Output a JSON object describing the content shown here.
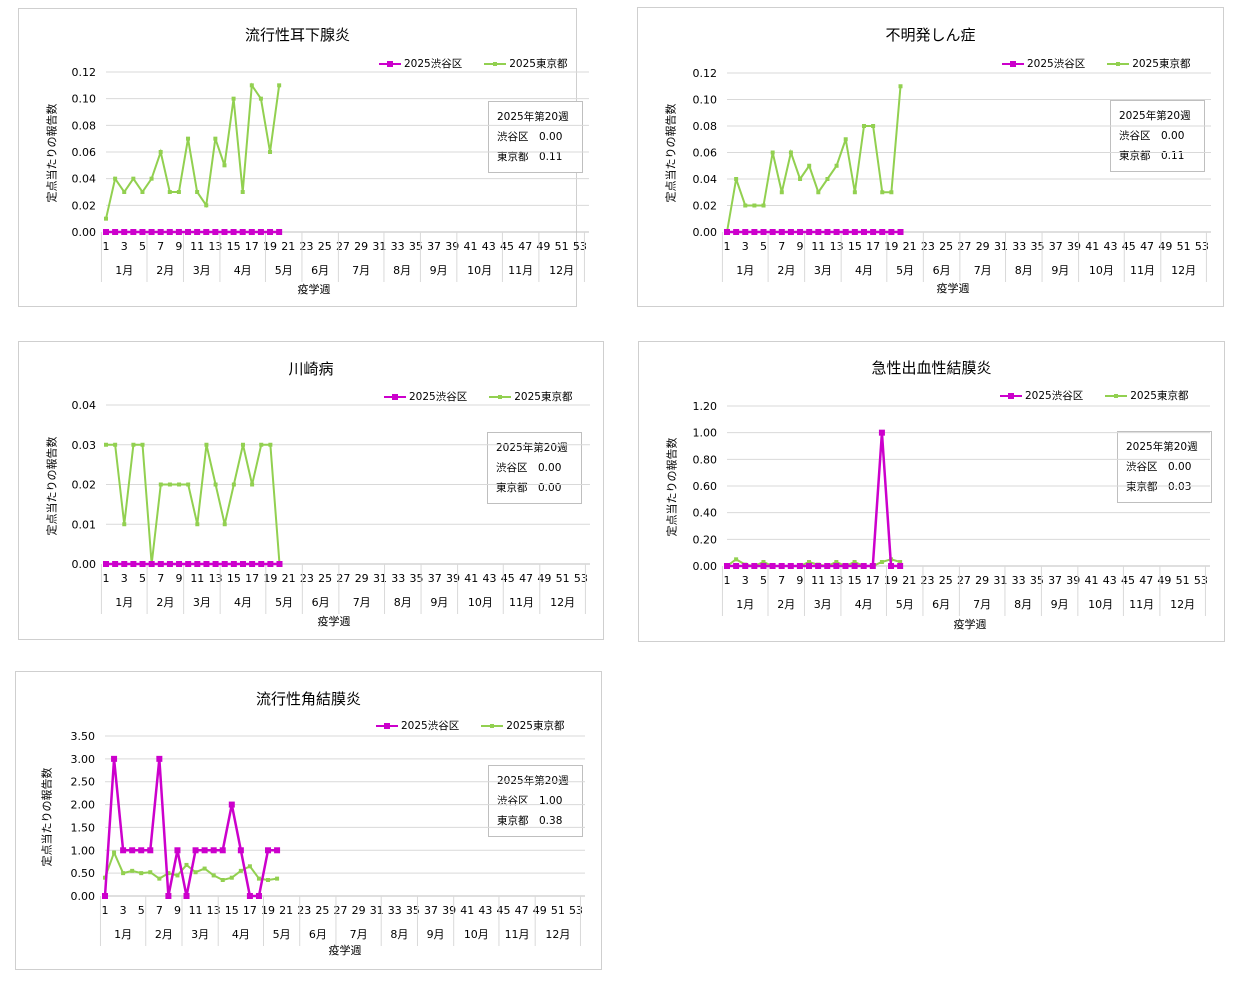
{
  "colors": {
    "shibuya": "#cc00cc",
    "tokyo": "#92d050",
    "grid": "#d9d9d9",
    "axis": "#bfbfbf"
  },
  "charts": [
    {
      "title": "流行性耳下腺炎",
      "ylabel": "定点当たりの報告数",
      "xlabel": "疫学週",
      "info": {
        "heading": "2025年第20週",
        "shibuya_label": "渋谷区",
        "shibuya_value": "0.00",
        "tokyo_label": "東京都",
        "tokyo_value": "0.11"
      },
      "chart_data": {
        "type": "line",
        "x": [
          1,
          2,
          3,
          4,
          5,
          6,
          7,
          8,
          9,
          10,
          11,
          12,
          13,
          14,
          15,
          16,
          17,
          18,
          19,
          20
        ],
        "ylim": [
          0,
          0.12
        ],
        "yticks": [
          "0.00",
          "0.02",
          "0.04",
          "0.06",
          "0.08",
          "0.10",
          "0.12"
        ],
        "xticks": [
          "1",
          "3",
          "5",
          "7",
          "9",
          "11",
          "13",
          "15",
          "17",
          "19",
          "21",
          "23",
          "25",
          "27",
          "29",
          "31",
          "33",
          "35",
          "37",
          "39",
          "41",
          "43",
          "45",
          "47",
          "49",
          "51",
          "53"
        ],
        "months": [
          "1月",
          "2月",
          "3月",
          "4月",
          "5月",
          "6月",
          "7月",
          "8月",
          "9月",
          "10月",
          "11月",
          "12月"
        ],
        "series": [
          {
            "name": "2025渋谷区",
            "values": [
              0,
              0,
              0,
              0,
              0,
              0,
              0,
              0,
              0,
              0,
              0,
              0,
              0,
              0,
              0,
              0,
              0,
              0,
              0,
              0
            ]
          },
          {
            "name": "2025東京都",
            "values": [
              0.01,
              0.04,
              0.03,
              0.04,
              0.03,
              0.04,
              0.06,
              0.03,
              0.03,
              0.07,
              0.03,
              0.02,
              0.07,
              0.05,
              0.1,
              0.03,
              0.11,
              0.1,
              0.06,
              0.11
            ]
          }
        ]
      }
    },
    {
      "title": "不明発しん症",
      "ylabel": "定点当たりの報告数",
      "xlabel": "疫学週",
      "info": {
        "heading": "2025年第20週",
        "shibuya_label": "渋谷区",
        "shibuya_value": "0.00",
        "tokyo_label": "東京都",
        "tokyo_value": "0.11"
      },
      "chart_data": {
        "type": "line",
        "x": [
          1,
          2,
          3,
          4,
          5,
          6,
          7,
          8,
          9,
          10,
          11,
          12,
          13,
          14,
          15,
          16,
          17,
          18,
          19,
          20
        ],
        "ylim": [
          0,
          0.12
        ],
        "yticks": [
          "0.00",
          "0.02",
          "0.04",
          "0.06",
          "0.08",
          "0.10",
          "0.12"
        ],
        "xticks": [
          "1",
          "3",
          "5",
          "7",
          "9",
          "11",
          "13",
          "15",
          "17",
          "19",
          "21",
          "23",
          "25",
          "27",
          "29",
          "31",
          "33",
          "35",
          "37",
          "39",
          "41",
          "43",
          "45",
          "47",
          "49",
          "51",
          "53"
        ],
        "months": [
          "1月",
          "2月",
          "3月",
          "4月",
          "5月",
          "6月",
          "7月",
          "8月",
          "9月",
          "10月",
          "11月",
          "12月"
        ],
        "series": [
          {
            "name": "2025渋谷区",
            "values": [
              0,
              0,
              0,
              0,
              0,
              0,
              0,
              0,
              0,
              0,
              0,
              0,
              0,
              0,
              0,
              0,
              0,
              0,
              0,
              0
            ]
          },
          {
            "name": "2025東京都",
            "values": [
              0.0,
              0.04,
              0.02,
              0.02,
              0.02,
              0.06,
              0.03,
              0.06,
              0.04,
              0.05,
              0.03,
              0.04,
              0.05,
              0.07,
              0.03,
              0.08,
              0.08,
              0.03,
              0.03,
              0.11
            ]
          }
        ]
      }
    },
    {
      "title": "川崎病",
      "ylabel": "定点当たりの報告数",
      "xlabel": "疫学週",
      "info": {
        "heading": "2025年第20週",
        "shibuya_label": "渋谷区",
        "shibuya_value": "0.00",
        "tokyo_label": "東京都",
        "tokyo_value": "0.00"
      },
      "chart_data": {
        "type": "line",
        "x": [
          1,
          2,
          3,
          4,
          5,
          6,
          7,
          8,
          9,
          10,
          11,
          12,
          13,
          14,
          15,
          16,
          17,
          18,
          19,
          20
        ],
        "ylim": [
          0,
          0.04
        ],
        "yticks": [
          "0.00",
          "0.01",
          "0.02",
          "0.03",
          "0.04"
        ],
        "xticks": [
          "1",
          "3",
          "5",
          "7",
          "9",
          "11",
          "13",
          "15",
          "17",
          "19",
          "21",
          "23",
          "25",
          "27",
          "29",
          "31",
          "33",
          "35",
          "37",
          "39",
          "41",
          "43",
          "45",
          "47",
          "49",
          "51",
          "53"
        ],
        "months": [
          "1月",
          "2月",
          "3月",
          "4月",
          "5月",
          "6月",
          "7月",
          "8月",
          "9月",
          "10月",
          "11月",
          "12月"
        ],
        "series": [
          {
            "name": "2025渋谷区",
            "values": [
              0,
              0,
              0,
              0,
              0,
              0,
              0,
              0,
              0,
              0,
              0,
              0,
              0,
              0,
              0,
              0,
              0,
              0,
              0,
              0
            ]
          },
          {
            "name": "2025東京都",
            "values": [
              0.03,
              0.03,
              0.01,
              0.03,
              0.03,
              0.0,
              0.02,
              0.02,
              0.02,
              0.02,
              0.01,
              0.03,
              0.02,
              0.01,
              0.02,
              0.03,
              0.02,
              0.03,
              0.03,
              0.0
            ]
          }
        ]
      }
    },
    {
      "title": "急性出血性結膜炎",
      "ylabel": "定点当たりの報告数",
      "xlabel": "疫学週",
      "info": {
        "heading": "2025年第20週",
        "shibuya_label": "渋谷区",
        "shibuya_value": "0.00",
        "tokyo_label": "東京都",
        "tokyo_value": "0.03"
      },
      "chart_data": {
        "type": "line",
        "x": [
          1,
          2,
          3,
          4,
          5,
          6,
          7,
          8,
          9,
          10,
          11,
          12,
          13,
          14,
          15,
          16,
          17,
          18,
          19,
          20
        ],
        "ylim": [
          0,
          1.2
        ],
        "yticks": [
          "0.00",
          "0.20",
          "0.40",
          "0.60",
          "0.80",
          "1.00",
          "1.20"
        ],
        "xticks": [
          "1",
          "3",
          "5",
          "7",
          "9",
          "11",
          "13",
          "15",
          "17",
          "19",
          "21",
          "23",
          "25",
          "27",
          "29",
          "31",
          "33",
          "35",
          "37",
          "39",
          "41",
          "43",
          "45",
          "47",
          "49",
          "51",
          "53"
        ],
        "months": [
          "1月",
          "2月",
          "3月",
          "4月",
          "5月",
          "6月",
          "7月",
          "8月",
          "9月",
          "10月",
          "11月",
          "12月"
        ],
        "series": [
          {
            "name": "2025渋谷区",
            "values": [
              0,
              0,
              0,
              0,
              0,
              0,
              0,
              0,
              0,
              0,
              0,
              0,
              0,
              0,
              0,
              0,
              0,
              1.0,
              0,
              0
            ]
          },
          {
            "name": "2025東京都",
            "values": [
              0.0,
              0.05,
              0.01,
              0.0,
              0.03,
              0.0,
              0.0,
              0.0,
              0.0,
              0.03,
              0.01,
              0.0,
              0.03,
              0.0,
              0.03,
              0.0,
              0.0,
              0.03,
              0.05,
              0.03
            ]
          }
        ]
      }
    },
    {
      "title": "流行性角結膜炎",
      "ylabel": "定点当たりの報告数",
      "xlabel": "疫学週",
      "info": {
        "heading": "2025年第20週",
        "shibuya_label": "渋谷区",
        "shibuya_value": "1.00",
        "tokyo_label": "東京都",
        "tokyo_value": "0.38"
      },
      "chart_data": {
        "type": "line",
        "x": [
          1,
          2,
          3,
          4,
          5,
          6,
          7,
          8,
          9,
          10,
          11,
          12,
          13,
          14,
          15,
          16,
          17,
          18,
          19,
          20
        ],
        "ylim": [
          0,
          3.5
        ],
        "yticks": [
          "0.00",
          "0.50",
          "1.00",
          "1.50",
          "2.00",
          "2.50",
          "3.00",
          "3.50"
        ],
        "xticks": [
          "1",
          "3",
          "5",
          "7",
          "9",
          "11",
          "13",
          "15",
          "17",
          "19",
          "21",
          "23",
          "25",
          "27",
          "29",
          "31",
          "33",
          "35",
          "37",
          "39",
          "41",
          "43",
          "45",
          "47",
          "49",
          "51",
          "53"
        ],
        "months": [
          "1月",
          "2月",
          "3月",
          "4月",
          "5月",
          "6月",
          "7月",
          "8月",
          "9月",
          "10月",
          "11月",
          "12月"
        ],
        "series": [
          {
            "name": "2025渋谷区",
            "values": [
              0,
              3,
              1,
              1,
              1,
              1,
              3,
              0,
              1,
              0,
              1,
              1,
              1,
              1,
              2,
              1,
              0,
              0,
              1,
              1
            ]
          },
          {
            "name": "2025東京都",
            "values": [
              0.4,
              0.95,
              0.5,
              0.55,
              0.5,
              0.52,
              0.38,
              0.5,
              0.45,
              0.68,
              0.52,
              0.6,
              0.45,
              0.35,
              0.4,
              0.55,
              0.65,
              0.38,
              0.35,
              0.38
            ]
          }
        ]
      }
    }
  ]
}
